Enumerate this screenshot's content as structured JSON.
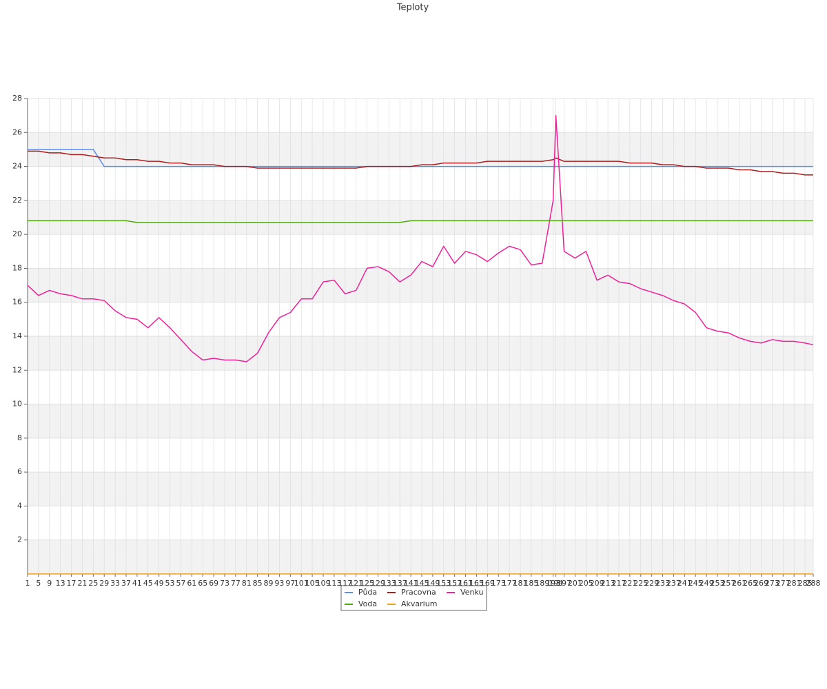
{
  "chart_data": {
    "type": "line",
    "title": "Teploty",
    "x": [
      1,
      5,
      9,
      13,
      17,
      21,
      25,
      29,
      33,
      37,
      41,
      45,
      49,
      53,
      57,
      61,
      65,
      69,
      73,
      77,
      81,
      85,
      89,
      93,
      97,
      101,
      105,
      109,
      113,
      117,
      121,
      125,
      129,
      133,
      137,
      141,
      145,
      149,
      153,
      157,
      161,
      165,
      169,
      173,
      177,
      181,
      185,
      189,
      193,
      194,
      197,
      201,
      205,
      209,
      213,
      217,
      221,
      225,
      229,
      233,
      237,
      241,
      245,
      249,
      253,
      257,
      261,
      265,
      269,
      273,
      277,
      281,
      285,
      288
    ],
    "xlim": [
      1,
      288
    ],
    "ylim": [
      0,
      28
    ],
    "yticks": [
      2,
      4,
      6,
      8,
      10,
      12,
      14,
      16,
      18,
      20,
      22,
      24,
      26,
      28
    ],
    "grid": true,
    "legend": "bottom",
    "series": [
      {
        "name": "Půda",
        "color": "#5b8fe8",
        "values": [
          25.0,
          25.0,
          25.0,
          25.0,
          25.0,
          25.0,
          25.0,
          24.0,
          24.0,
          24.0,
          24.0,
          24.0,
          24.0,
          24.0,
          24.0,
          24.0,
          24.0,
          24.0,
          24.0,
          24.0,
          24.0,
          24.0,
          24.0,
          24.0,
          24.0,
          24.0,
          24.0,
          24.0,
          24.0,
          24.0,
          24.0,
          24.0,
          24.0,
          24.0,
          24.0,
          24.0,
          24.0,
          24.0,
          24.0,
          24.0,
          24.0,
          24.0,
          24.0,
          24.0,
          24.0,
          24.0,
          24.0,
          24.0,
          24.0,
          24.0,
          24.0,
          24.0,
          24.0,
          24.0,
          24.0,
          24.0,
          24.0,
          24.0,
          24.0,
          24.0,
          24.0,
          24.0,
          24.0,
          24.0,
          24.0,
          24.0,
          24.0,
          24.0,
          24.0,
          24.0,
          24.0,
          24.0,
          24.0,
          24.0
        ]
      },
      {
        "name": "Pracovna",
        "color": "#b01c1c",
        "values": [
          24.9,
          24.9,
          24.8,
          24.8,
          24.7,
          24.7,
          24.6,
          24.5,
          24.5,
          24.4,
          24.4,
          24.3,
          24.3,
          24.2,
          24.2,
          24.1,
          24.1,
          24.1,
          24.0,
          24.0,
          24.0,
          23.9,
          23.9,
          23.9,
          23.9,
          23.9,
          23.9,
          23.9,
          23.9,
          23.9,
          23.9,
          24.0,
          24.0,
          24.0,
          24.0,
          24.0,
          24.1,
          24.1,
          24.2,
          24.2,
          24.2,
          24.2,
          24.3,
          24.3,
          24.3,
          24.3,
          24.3,
          24.3,
          24.4,
          24.5,
          24.3,
          24.3,
          24.3,
          24.3,
          24.3,
          24.3,
          24.2,
          24.2,
          24.2,
          24.1,
          24.1,
          24.0,
          24.0,
          23.9,
          23.9,
          23.9,
          23.8,
          23.8,
          23.7,
          23.7,
          23.6,
          23.6,
          23.5,
          23.5
        ]
      },
      {
        "name": "Venku",
        "color": "#f0209a",
        "values": [
          17.0,
          16.4,
          16.7,
          16.5,
          16.4,
          16.2,
          16.2,
          16.1,
          15.5,
          15.1,
          15.0,
          14.5,
          15.1,
          14.5,
          13.8,
          13.1,
          12.6,
          12.7,
          12.6,
          12.6,
          12.5,
          13.0,
          14.2,
          15.1,
          15.4,
          16.2,
          16.2,
          17.2,
          17.3,
          16.5,
          16.7,
          18.0,
          18.1,
          17.8,
          17.2,
          17.6,
          18.4,
          18.1,
          19.3,
          18.3,
          19.0,
          18.8,
          18.4,
          18.9,
          19.3,
          19.1,
          18.2,
          18.3,
          22.0,
          27.0,
          19.0,
          18.6,
          19.0,
          17.3,
          17.6,
          17.2,
          17.1,
          16.8,
          16.6,
          16.4,
          16.1,
          15.9,
          15.4,
          14.5,
          14.3,
          14.2,
          13.9,
          13.7,
          13.6,
          13.8,
          13.7,
          13.7,
          13.6,
          13.5
        ]
      },
      {
        "name": "Voda",
        "color": "#4fa80e",
        "values": [
          20.8,
          20.8,
          20.8,
          20.8,
          20.8,
          20.8,
          20.8,
          20.8,
          20.8,
          20.8,
          20.7,
          20.7,
          20.7,
          20.7,
          20.7,
          20.7,
          20.7,
          20.7,
          20.7,
          20.7,
          20.7,
          20.7,
          20.7,
          20.7,
          20.7,
          20.7,
          20.7,
          20.7,
          20.7,
          20.7,
          20.7,
          20.7,
          20.7,
          20.7,
          20.7,
          20.8,
          20.8,
          20.8,
          20.8,
          20.8,
          20.8,
          20.8,
          20.8,
          20.8,
          20.8,
          20.8,
          20.8,
          20.8,
          20.8,
          20.8,
          20.8,
          20.8,
          20.8,
          20.8,
          20.8,
          20.8,
          20.8,
          20.8,
          20.8,
          20.8,
          20.8,
          20.8,
          20.8,
          20.8,
          20.8,
          20.8,
          20.8,
          20.8,
          20.8,
          20.8,
          20.8,
          20.8,
          20.8,
          20.8
        ]
      },
      {
        "name": "Akvarium",
        "color": "#f0a01a",
        "values": [
          0,
          0,
          0,
          0,
          0,
          0,
          0,
          0,
          0,
          0,
          0,
          0,
          0,
          0,
          0,
          0,
          0,
          0,
          0,
          0,
          0,
          0,
          0,
          0,
          0,
          0,
          0,
          0,
          0,
          0,
          0,
          0,
          0,
          0,
          0,
          0,
          0,
          0,
          0,
          0,
          0,
          0,
          0,
          0,
          0,
          0,
          0,
          0,
          0,
          0,
          0,
          0,
          0,
          0,
          0,
          0,
          0,
          0,
          0,
          0,
          0,
          0,
          0,
          0,
          0,
          0,
          0,
          0,
          0,
          0,
          0,
          0,
          0,
          0
        ]
      }
    ]
  }
}
